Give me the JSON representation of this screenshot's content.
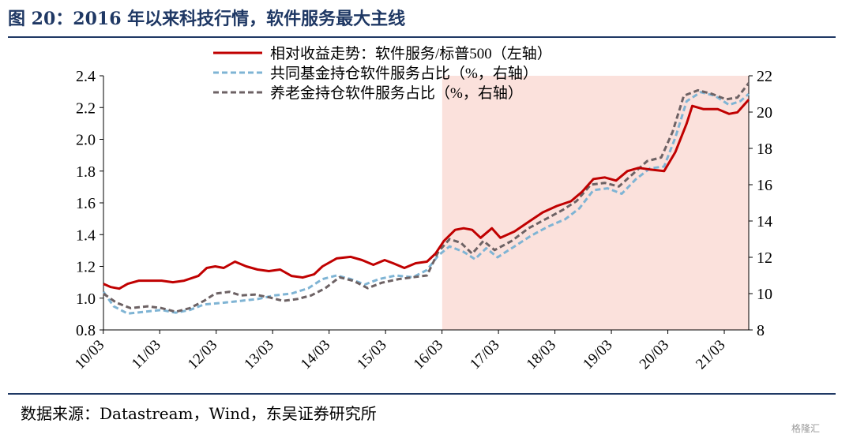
{
  "header": {
    "title": "图 20：2016 年以来科技行情，软件服务最大主线"
  },
  "footer": {
    "source": "数据来源：Datastream，Wind，东吴证券研究所",
    "watermark": "格隆汇"
  },
  "chart_data": {
    "type": "line",
    "x_labels": [
      "10/03",
      "11/03",
      "12/03",
      "13/03",
      "14/03",
      "15/03",
      "16/03",
      "17/03",
      "18/03",
      "19/03",
      "20/03",
      "21/03"
    ],
    "x_domain": [
      2010.17,
      2021.6
    ],
    "left_axis": {
      "ylim": [
        0.8,
        2.4
      ],
      "ticks": [
        "0.8",
        "1.0",
        "1.2",
        "1.4",
        "1.6",
        "1.8",
        "2.0",
        "2.2",
        "2.4"
      ]
    },
    "right_axis": {
      "ylim": [
        8,
        22
      ],
      "ticks": [
        "8",
        "10",
        "12",
        "14",
        "16",
        "18",
        "20",
        "22"
      ]
    },
    "highlight": {
      "from": 2016.17,
      "to": 2021.6,
      "color": "#fbe1dc"
    },
    "series": [
      {
        "name": "相对收益走势：软件服务/标普500（左轴）",
        "axis": "left",
        "color": "#c00000",
        "dash": "solid",
        "points": [
          [
            2010.17,
            1.09
          ],
          [
            2010.3,
            1.07
          ],
          [
            2010.45,
            1.06
          ],
          [
            2010.6,
            1.09
          ],
          [
            2010.8,
            1.11
          ],
          [
            2011.0,
            1.11
          ],
          [
            2011.2,
            1.11
          ],
          [
            2011.4,
            1.1
          ],
          [
            2011.6,
            1.11
          ],
          [
            2011.85,
            1.14
          ],
          [
            2012.0,
            1.19
          ],
          [
            2012.15,
            1.2
          ],
          [
            2012.3,
            1.19
          ],
          [
            2012.5,
            1.23
          ],
          [
            2012.7,
            1.2
          ],
          [
            2012.9,
            1.18
          ],
          [
            2013.1,
            1.17
          ],
          [
            2013.3,
            1.18
          ],
          [
            2013.5,
            1.14
          ],
          [
            2013.7,
            1.13
          ],
          [
            2013.9,
            1.15
          ],
          [
            2014.05,
            1.2
          ],
          [
            2014.3,
            1.25
          ],
          [
            2014.55,
            1.26
          ],
          [
            2014.75,
            1.24
          ],
          [
            2014.95,
            1.21
          ],
          [
            2015.15,
            1.24
          ],
          [
            2015.3,
            1.22
          ],
          [
            2015.5,
            1.19
          ],
          [
            2015.7,
            1.22
          ],
          [
            2015.9,
            1.23
          ],
          [
            2016.05,
            1.28
          ],
          [
            2016.2,
            1.36
          ],
          [
            2016.4,
            1.43
          ],
          [
            2016.55,
            1.44
          ],
          [
            2016.7,
            1.43
          ],
          [
            2016.85,
            1.38
          ],
          [
            2017.05,
            1.44
          ],
          [
            2017.2,
            1.38
          ],
          [
            2017.45,
            1.42
          ],
          [
            2017.7,
            1.48
          ],
          [
            2017.95,
            1.54
          ],
          [
            2018.2,
            1.58
          ],
          [
            2018.45,
            1.61
          ],
          [
            2018.65,
            1.67
          ],
          [
            2018.85,
            1.75
          ],
          [
            2019.05,
            1.76
          ],
          [
            2019.25,
            1.74
          ],
          [
            2019.45,
            1.8
          ],
          [
            2019.65,
            1.82
          ],
          [
            2019.85,
            1.81
          ],
          [
            2020.1,
            1.8
          ],
          [
            2020.3,
            1.92
          ],
          [
            2020.5,
            2.1
          ],
          [
            2020.6,
            2.21
          ],
          [
            2020.8,
            2.19
          ],
          [
            2021.05,
            2.19
          ],
          [
            2021.25,
            2.16
          ],
          [
            2021.4,
            2.17
          ],
          [
            2021.6,
            2.25
          ]
        ]
      },
      {
        "name": "共同基金持仓软件服务占比（%，右轴）",
        "axis": "right",
        "color": "#7fb4d4",
        "dash": "dashed",
        "points": [
          [
            2010.17,
            10.1
          ],
          [
            2010.35,
            9.3
          ],
          [
            2010.6,
            8.9
          ],
          [
            2010.9,
            9.0
          ],
          [
            2011.2,
            9.1
          ],
          [
            2011.45,
            8.95
          ],
          [
            2011.7,
            9.1
          ],
          [
            2011.95,
            9.4
          ],
          [
            2012.3,
            9.5
          ],
          [
            2012.6,
            9.6
          ],
          [
            2012.9,
            9.7
          ],
          [
            2013.2,
            9.9
          ],
          [
            2013.5,
            10.0
          ],
          [
            2013.8,
            10.3
          ],
          [
            2014.05,
            10.8
          ],
          [
            2014.3,
            11.0
          ],
          [
            2014.55,
            10.8
          ],
          [
            2014.8,
            10.5
          ],
          [
            2015.05,
            10.8
          ],
          [
            2015.35,
            11.0
          ],
          [
            2015.65,
            10.9
          ],
          [
            2015.9,
            11.3
          ],
          [
            2016.1,
            12.1
          ],
          [
            2016.3,
            12.6
          ],
          [
            2016.55,
            12.3
          ],
          [
            2016.75,
            11.9
          ],
          [
            2016.95,
            12.5
          ],
          [
            2017.15,
            12.0
          ],
          [
            2017.45,
            12.6
          ],
          [
            2017.75,
            13.2
          ],
          [
            2018.05,
            13.7
          ],
          [
            2018.35,
            14.1
          ],
          [
            2018.6,
            14.7
          ],
          [
            2018.85,
            15.7
          ],
          [
            2019.1,
            15.8
          ],
          [
            2019.35,
            15.5
          ],
          [
            2019.6,
            16.3
          ],
          [
            2019.85,
            16.9
          ],
          [
            2020.1,
            17.0
          ],
          [
            2020.3,
            18.6
          ],
          [
            2020.5,
            20.6
          ],
          [
            2020.75,
            21.1
          ],
          [
            2021.0,
            20.9
          ],
          [
            2021.25,
            20.4
          ],
          [
            2021.45,
            20.6
          ],
          [
            2021.6,
            21.0
          ]
        ]
      },
      {
        "name": "养老金持仓软件服务占比（%，右轴）",
        "axis": "right",
        "color": "#6d6264",
        "dash": "dashed",
        "points": [
          [
            2010.17,
            10.0
          ],
          [
            2010.4,
            9.5
          ],
          [
            2010.65,
            9.2
          ],
          [
            2010.95,
            9.3
          ],
          [
            2011.2,
            9.2
          ],
          [
            2011.45,
            9.0
          ],
          [
            2011.7,
            9.2
          ],
          [
            2011.95,
            9.6
          ],
          [
            2012.15,
            10.0
          ],
          [
            2012.4,
            10.1
          ],
          [
            2012.6,
            9.9
          ],
          [
            2012.85,
            9.95
          ],
          [
            2013.1,
            9.8
          ],
          [
            2013.35,
            9.6
          ],
          [
            2013.6,
            9.7
          ],
          [
            2013.85,
            9.9
          ],
          [
            2014.1,
            10.3
          ],
          [
            2014.35,
            10.9
          ],
          [
            2014.6,
            10.7
          ],
          [
            2014.85,
            10.3
          ],
          [
            2015.1,
            10.6
          ],
          [
            2015.4,
            10.8
          ],
          [
            2015.65,
            10.9
          ],
          [
            2015.9,
            11.0
          ],
          [
            2016.1,
            12.3
          ],
          [
            2016.3,
            13.0
          ],
          [
            2016.5,
            12.8
          ],
          [
            2016.7,
            12.2
          ],
          [
            2016.9,
            12.9
          ],
          [
            2017.1,
            12.4
          ],
          [
            2017.4,
            12.9
          ],
          [
            2017.7,
            13.6
          ],
          [
            2018.0,
            14.1
          ],
          [
            2018.3,
            14.6
          ],
          [
            2018.55,
            15.1
          ],
          [
            2018.8,
            16.0
          ],
          [
            2019.05,
            16.1
          ],
          [
            2019.3,
            15.9
          ],
          [
            2019.55,
            16.6
          ],
          [
            2019.8,
            17.3
          ],
          [
            2020.05,
            17.5
          ],
          [
            2020.25,
            18.9
          ],
          [
            2020.45,
            20.9
          ],
          [
            2020.7,
            21.2
          ],
          [
            2020.95,
            21.0
          ],
          [
            2021.2,
            20.7
          ],
          [
            2021.4,
            20.8
          ],
          [
            2021.6,
            21.6
          ]
        ]
      }
    ]
  }
}
